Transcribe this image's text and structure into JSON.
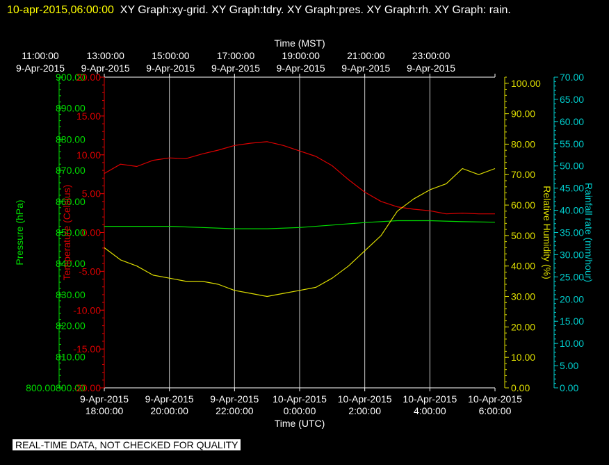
{
  "header": {
    "timestamp": "10-apr-2015,06:00:00",
    "graphs": "XY Graph:xy-grid.  XY Graph:tdry.  XY Graph:pres.  XY Graph:rh.  XY Graph: rain."
  },
  "footer_note": "REAL-TIME DATA, NOT CHECKED FOR QUALITY",
  "chart_data": {
    "type": "line",
    "grid": "vertical",
    "x_top": {
      "label": "Time (MST)",
      "ticks": [
        {
          "time": "11:00:00",
          "date": "9-Apr-2015"
        },
        {
          "time": "13:00:00",
          "date": "9-Apr-2015"
        },
        {
          "time": "15:00:00",
          "date": "9-Apr-2015"
        },
        {
          "time": "17:00:00",
          "date": "9-Apr-2015"
        },
        {
          "time": "19:00:00",
          "date": "9-Apr-2015"
        },
        {
          "time": "21:00:00",
          "date": "9-Apr-2015"
        },
        {
          "time": "23:00:00",
          "date": "9-Apr-2015"
        }
      ]
    },
    "x_bottom": {
      "label": "Time (UTC)",
      "range": [
        "9-Apr-2015 18:00:00",
        "10-Apr-2015 6:00:00"
      ],
      "ticks": [
        {
          "date": "9-Apr-2015",
          "time": "18:00:00"
        },
        {
          "date": "9-Apr-2015",
          "time": "20:00:00"
        },
        {
          "date": "9-Apr-2015",
          "time": "22:00:00"
        },
        {
          "date": "10-Apr-2015",
          "time": "0:00:00"
        },
        {
          "date": "10-Apr-2015",
          "time": "2:00:00"
        },
        {
          "date": "10-Apr-2015",
          "time": "4:00:00"
        },
        {
          "date": "10-Apr-2015",
          "time": "6:00:00"
        }
      ]
    },
    "axes": {
      "pres": {
        "label": "Pressure (hPa)",
        "color": "#00dd00",
        "range": [
          800,
          900
        ],
        "ticks": [
          "800.00",
          "810.00",
          "820.00",
          "830.00",
          "840.00",
          "850.00",
          "860.00",
          "870.00",
          "880.00",
          "890.00",
          "900.00"
        ]
      },
      "tdry": {
        "label": "Temperature (Celsius)",
        "color": "#dd0000",
        "range": [
          -20,
          20
        ],
        "ticks": [
          "-20.00",
          "-15.00",
          "-10.00",
          "-5.00",
          "0.00",
          "5.00",
          "10.00",
          "15.00",
          "20.00"
        ]
      },
      "rh": {
        "label": "Relative Humidity (%)",
        "color": "#dddd00",
        "range": [
          0,
          102
        ],
        "ticks": [
          "0.00",
          "10.00",
          "20.00",
          "30.00",
          "40.00",
          "50.00",
          "60.00",
          "70.00",
          "80.00",
          "90.00",
          "100.00"
        ]
      },
      "rain": {
        "label": "Rainfall rate (mm/hour)",
        "color": "#00cccc",
        "range": [
          0,
          70
        ],
        "ticks": [
          "0.00",
          "5.00",
          "10.00",
          "15.00",
          "20.00",
          "25.00",
          "30.00",
          "35.00",
          "40.00",
          "45.00",
          "50.00",
          "55.00",
          "60.00",
          "65.00",
          "70.00"
        ]
      }
    },
    "series": [
      {
        "axis": "tdry",
        "color": "#dd0000",
        "x": [
          "9-Apr-2015 18:00",
          "9-Apr-2015 18:30",
          "9-Apr-2015 19:00",
          "9-Apr-2015 19:30",
          "9-Apr-2015 20:00",
          "9-Apr-2015 20:30",
          "9-Apr-2015 21:00",
          "9-Apr-2015 21:30",
          "9-Apr-2015 22:00",
          "9-Apr-2015 22:30",
          "9-Apr-2015 23:00",
          "9-Apr-2015 23:30",
          "10-Apr-2015 00:00",
          "10-Apr-2015 00:30",
          "10-Apr-2015 01:00",
          "10-Apr-2015 01:30",
          "10-Apr-2015 02:00",
          "10-Apr-2015 02:30",
          "10-Apr-2015 03:00",
          "10-Apr-2015 03:30",
          "10-Apr-2015 04:00",
          "10-Apr-2015 04:30",
          "10-Apr-2015 05:00",
          "10-Apr-2015 05:30",
          "10-Apr-2015 06:00"
        ],
        "y": [
          7.6,
          8.8,
          8.5,
          9.3,
          9.6,
          9.5,
          10.1,
          10.6,
          11.2,
          11.5,
          11.7,
          11.2,
          10.5,
          9.8,
          8.6,
          6.8,
          5.2,
          4.0,
          3.3,
          3.0,
          2.8,
          2.4,
          2.5,
          2.4,
          2.4
        ]
      },
      {
        "axis": "pres",
        "color": "#00dd00",
        "x": [
          "9-Apr-2015 18:00",
          "9-Apr-2015 19:00",
          "9-Apr-2015 20:00",
          "9-Apr-2015 21:00",
          "9-Apr-2015 22:00",
          "9-Apr-2015 23:00",
          "10-Apr-2015 00:00",
          "10-Apr-2015 01:00",
          "10-Apr-2015 02:00",
          "10-Apr-2015 03:00",
          "10-Apr-2015 04:00",
          "10-Apr-2015 05:00",
          "10-Apr-2015 06:00"
        ],
        "y": [
          852.0,
          852.0,
          852.0,
          851.6,
          851.2,
          851.2,
          851.6,
          852.4,
          853.2,
          853.8,
          853.8,
          853.5,
          853.3
        ]
      },
      {
        "axis": "rh",
        "color": "#dddd00",
        "x": [
          "9-Apr-2015 18:00",
          "9-Apr-2015 18:30",
          "9-Apr-2015 19:00",
          "9-Apr-2015 19:30",
          "9-Apr-2015 20:00",
          "9-Apr-2015 20:30",
          "9-Apr-2015 21:00",
          "9-Apr-2015 21:30",
          "9-Apr-2015 22:00",
          "9-Apr-2015 22:30",
          "9-Apr-2015 23:00",
          "9-Apr-2015 23:30",
          "10-Apr-2015 00:00",
          "10-Apr-2015 00:30",
          "10-Apr-2015 01:00",
          "10-Apr-2015 01:30",
          "10-Apr-2015 02:00",
          "10-Apr-2015 02:30",
          "10-Apr-2015 03:00",
          "10-Apr-2015 03:30",
          "10-Apr-2015 04:00",
          "10-Apr-2015 04:30",
          "10-Apr-2015 05:00",
          "10-Apr-2015 05:30",
          "10-Apr-2015 06:00"
        ],
        "y": [
          46,
          42,
          40,
          37,
          36,
          35,
          35,
          34,
          32,
          31,
          30,
          31,
          32,
          33,
          36,
          40,
          45,
          50,
          58,
          62,
          65,
          67,
          72,
          70,
          72
        ]
      }
    ]
  }
}
